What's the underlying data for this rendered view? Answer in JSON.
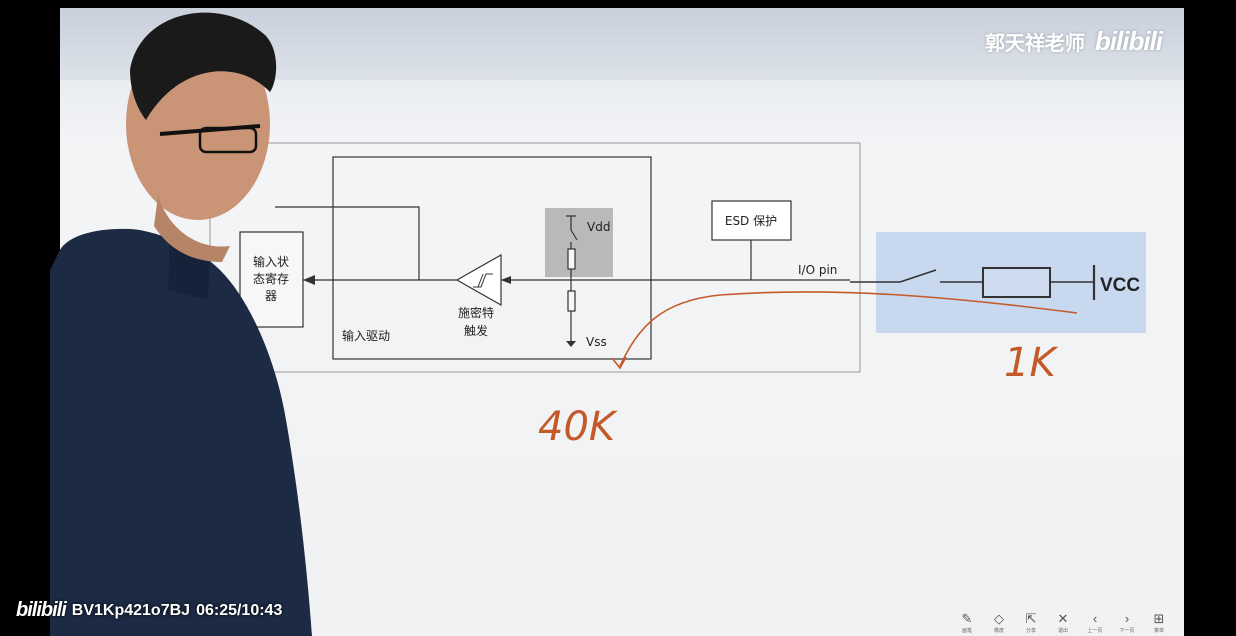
{
  "watermark": {
    "author": "郭天祥老师",
    "platform": "bilibili"
  },
  "footer": {
    "platform": "bilibili",
    "video_id": "BV1Kp421o7BJ",
    "time": "06:25/10:43"
  },
  "diagram": {
    "register_line1": "输入状",
    "register_line2": "态寄存",
    "register_line3": "器",
    "input_driver": "输入驱动",
    "schmitt_line1": "施密特",
    "schmitt_line2": "触发",
    "vdd": "Vdd",
    "vss": "Vss",
    "esd": "ESD 保护",
    "io_pin": "I/O pin",
    "vcc": "VCC"
  },
  "annotations": {
    "value_40k": "40K",
    "value_1k": "1K"
  },
  "toolbar": {
    "items": [
      {
        "icon": "pen-icon",
        "label": "画笔"
      },
      {
        "icon": "eraser-icon",
        "label": "橡皮"
      },
      {
        "icon": "share-icon",
        "label": "分享"
      },
      {
        "icon": "close-icon",
        "label": "退出"
      },
      {
        "icon": "prev-icon",
        "label": "上一页"
      },
      {
        "icon": "next-icon",
        "label": "下一页"
      },
      {
        "icon": "grid-icon",
        "label": "菜单"
      }
    ]
  },
  "colors": {
    "accent": "#2a6fdb",
    "ink": "#c45a2a",
    "shirt": "#1c2a44"
  }
}
